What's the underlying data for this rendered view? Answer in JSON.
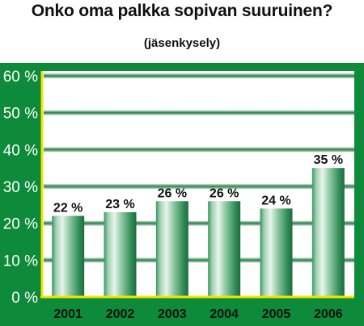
{
  "chart_data": {
    "type": "bar",
    "title": "Onko oma palkka sopivan suuruinen?",
    "subtitle": "(jäsenkysely)",
    "categories": [
      "2001",
      "2002",
      "2003",
      "2004",
      "2005",
      "2006"
    ],
    "values": [
      22,
      23,
      26,
      26,
      24,
      35
    ],
    "data_labels": [
      "22 %",
      "23 %",
      "26 %",
      "26 %",
      "24 %",
      "35 %"
    ],
    "yticks": [
      "0 %",
      "10 %",
      "20 %",
      "30 %",
      "40 %",
      "50 %",
      "60 %"
    ],
    "ylim": [
      0,
      60
    ],
    "grid": true,
    "colors": {
      "background_frame": "#0d8a3a",
      "plot_bg": "#ffffff",
      "axis": "#f2e600",
      "gridline": "#1f6b3a",
      "bar_light": "#d9efdf",
      "bar_dark": "#2e8a55"
    }
  }
}
